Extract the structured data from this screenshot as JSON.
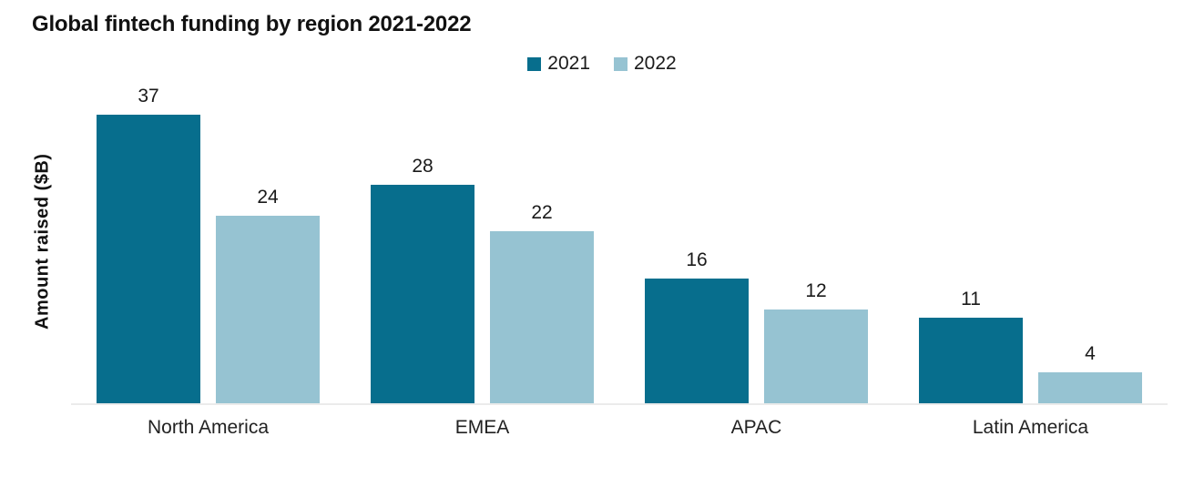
{
  "title": "Global fintech funding by region 2021-2022",
  "chart_data": {
    "type": "bar",
    "title": "Global fintech funding by region 2021-2022",
    "categories": [
      "North America",
      "EMEA",
      "APAC",
      "Latin America"
    ],
    "series": [
      {
        "name": "2021",
        "color": "#076e8d",
        "values": [
          37,
          28,
          16,
          11
        ]
      },
      {
        "name": "2022",
        "color": "#96c3d2",
        "values": [
          24,
          22,
          12,
          4
        ]
      }
    ],
    "xlabel": "",
    "ylabel": "Amount raised ($B)",
    "ylim": [
      0,
      42
    ],
    "grid": false,
    "legend_position": "top-center",
    "value_labels": true,
    "axis_line_color": "#ebebeb",
    "text_color": "#1a1a1a"
  }
}
